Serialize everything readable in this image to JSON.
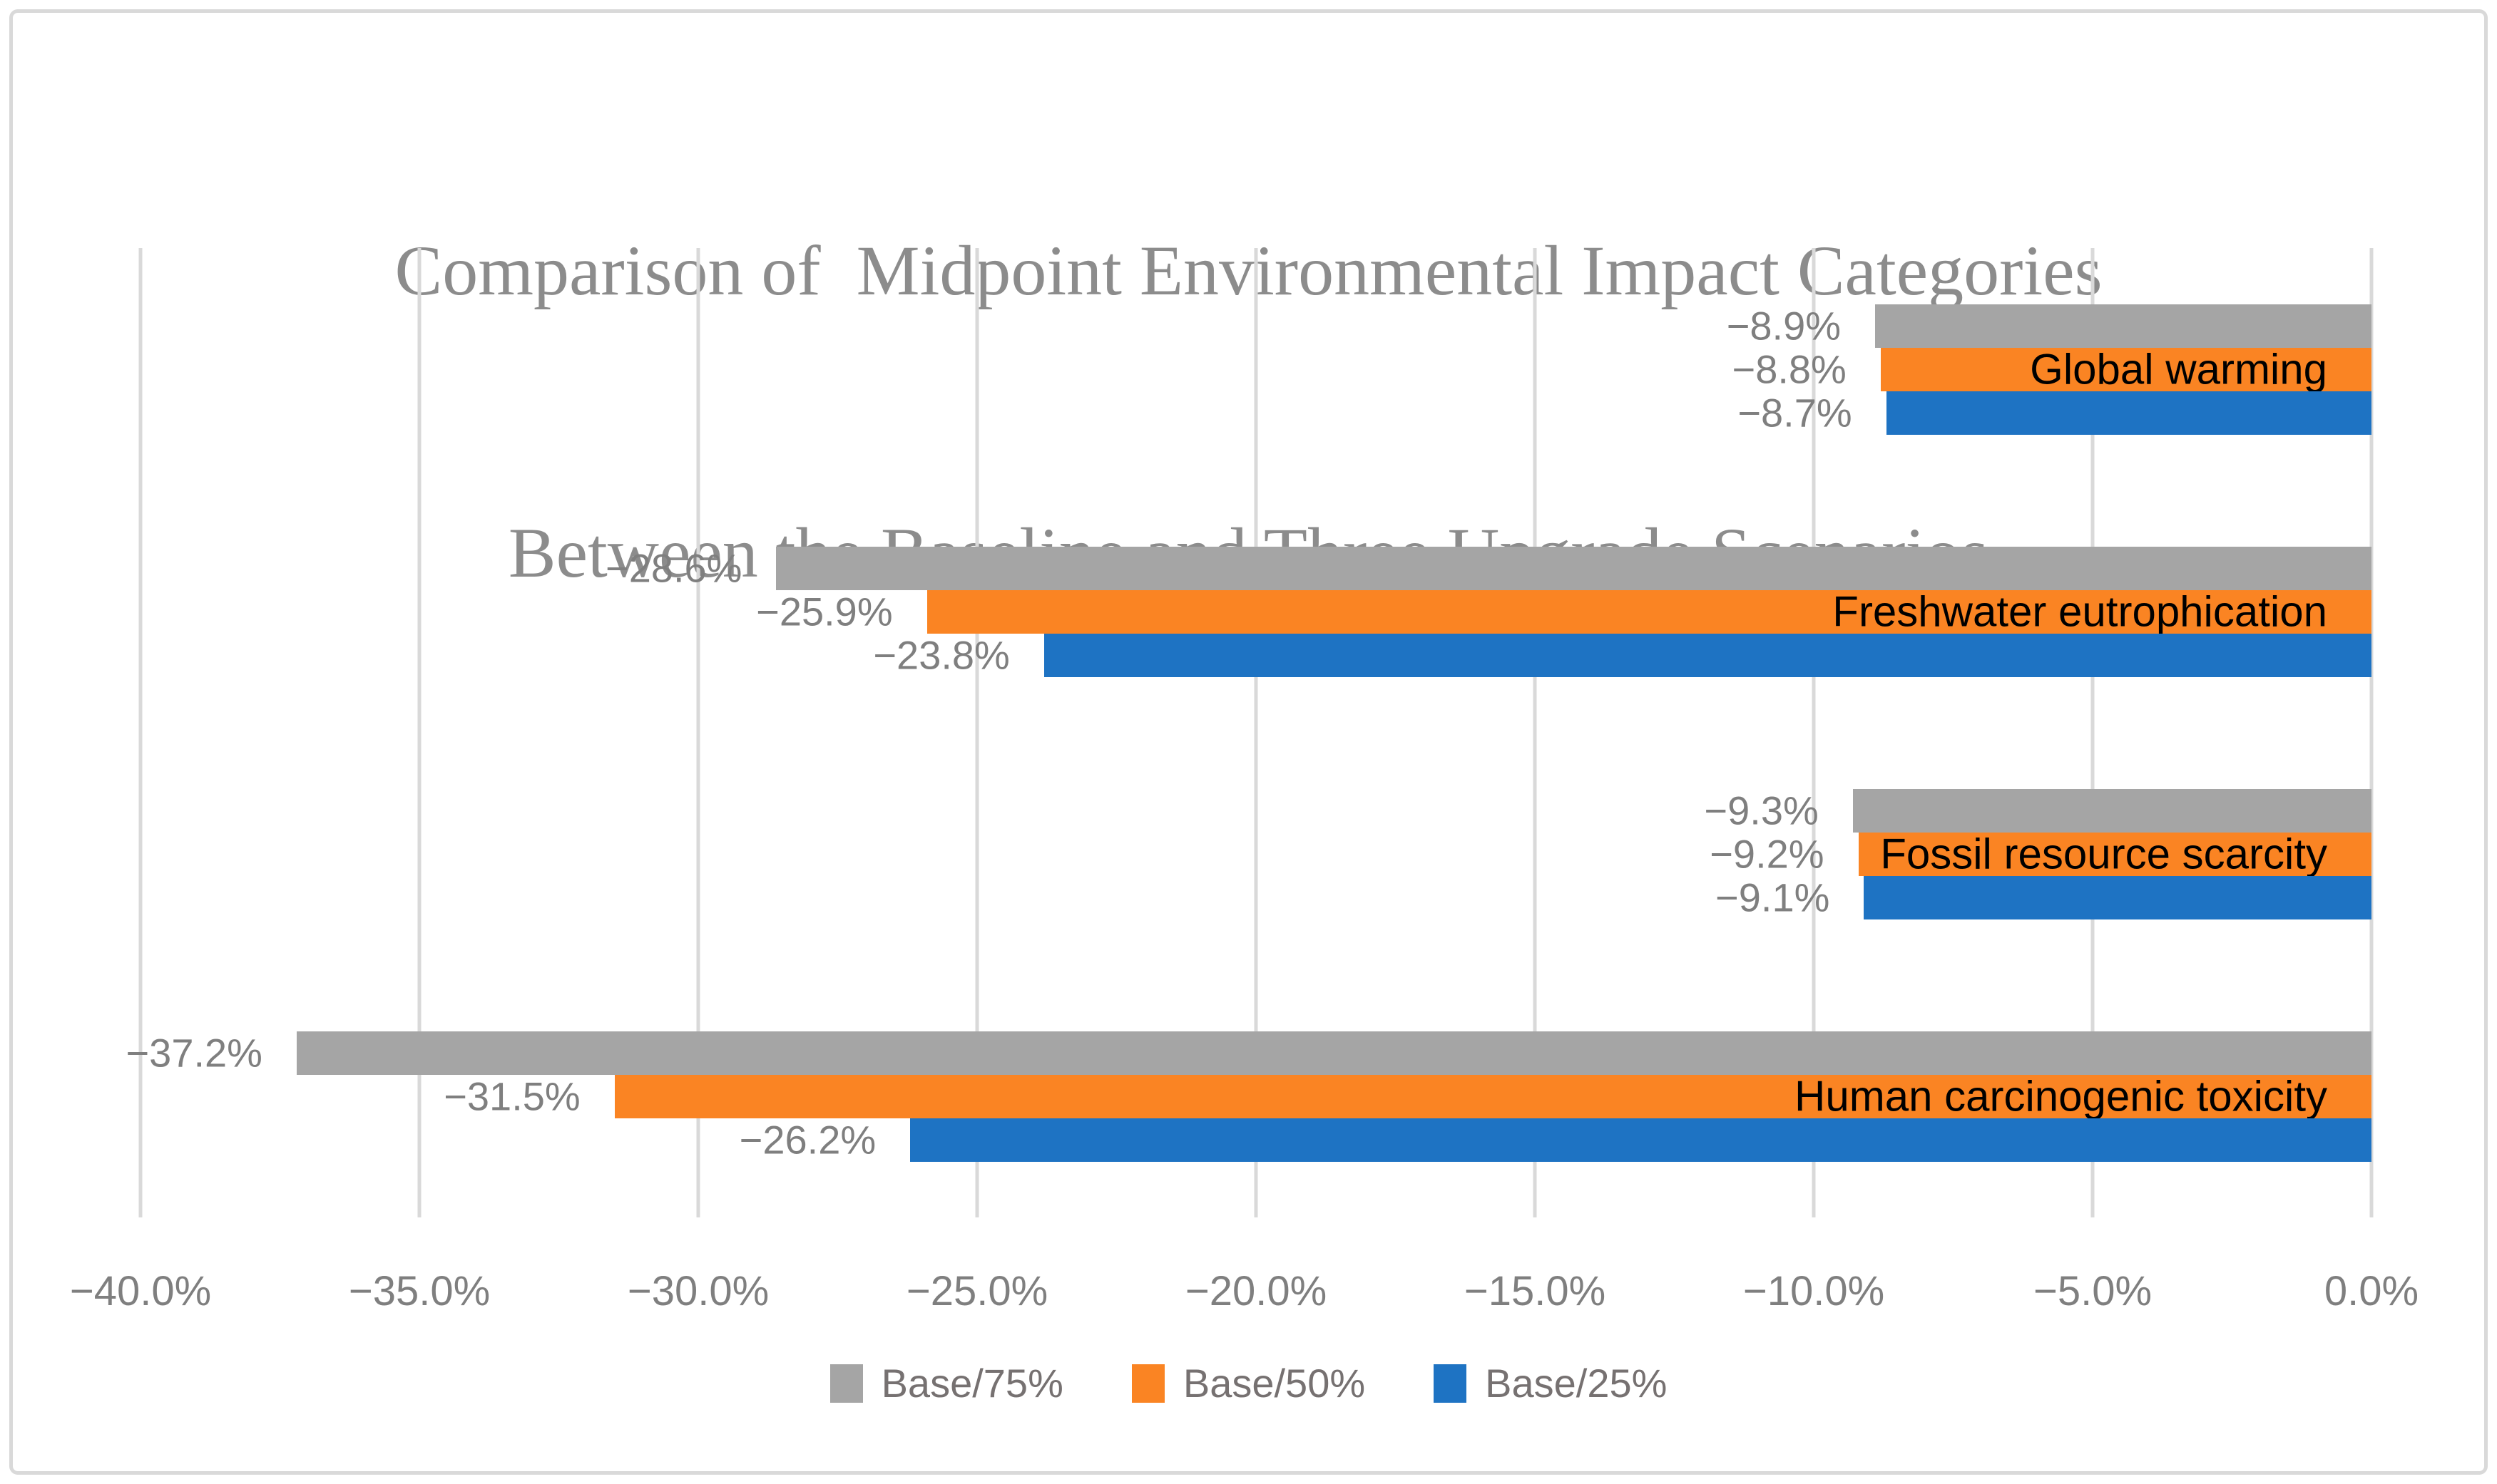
{
  "title": {
    "line1": "Comparison of  Midpoint Environmental Impact Categories",
    "line2": "Between the Baseline and Three Upgrade Scenarios"
  },
  "chart_data": {
    "type": "bar",
    "orientation": "horizontal",
    "title": "Comparison of  Midpoint Environmental Impact Categories Between the Baseline and Three Upgrade Scenarios",
    "categories": [
      "Global warming",
      "Freshwater eutrophication",
      "Fossil resource scarcity",
      "Human carcinogenic toxicity"
    ],
    "series": [
      {
        "name": "Base/75%",
        "color": "#A5A5A5",
        "values": [
          -8.9,
          -28.6,
          -9.3,
          -37.2
        ],
        "labels": [
          "−8.9%",
          "−28.6%",
          "−9.3%",
          "−37.2%"
        ]
      },
      {
        "name": "Base/50%",
        "color": "#FA8423",
        "values": [
          -8.8,
          -25.9,
          -9.2,
          -31.5
        ],
        "labels": [
          "−8.8%",
          "−25.9%",
          "−9.2%",
          "−31.5%"
        ]
      },
      {
        "name": "Base/25%",
        "color": "#1E73C3",
        "values": [
          -8.7,
          -23.8,
          -9.1,
          -26.2
        ],
        "labels": [
          "−8.7%",
          "−23.8%",
          "−9.1%",
          "−26.2%"
        ]
      }
    ],
    "xlim": [
      -40,
      0
    ],
    "x_ticks": [
      -40,
      -35,
      -30,
      -25,
      -20,
      -15,
      -10,
      -5,
      0
    ],
    "x_tick_labels": [
      "−40.0%",
      "−35.0%",
      "−30.0%",
      "−25.0%",
      "−20.0%",
      "−15.0%",
      "−10.0%",
      "−5.0%",
      "0.0%"
    ],
    "grid": true,
    "legend_position": "bottom",
    "category_label_placement": "inside-end of Base/50% bar"
  },
  "legend": {
    "items": [
      {
        "label": "Base/75%",
        "color": "#A5A5A5"
      },
      {
        "label": "Base/50%",
        "color": "#FA8423"
      },
      {
        "label": "Base/25%",
        "color": "#1E73C3"
      }
    ]
  },
  "colors": {
    "background": "#FFFFFF",
    "border": "#D9D9D9",
    "gridline": "#D9D9D9",
    "title_text": "#8C8C8C",
    "axis_text": "#7F7F7F",
    "data_label_text": "#7F7F7F",
    "legend_text": "#767171",
    "category_label_text": "#000000"
  }
}
